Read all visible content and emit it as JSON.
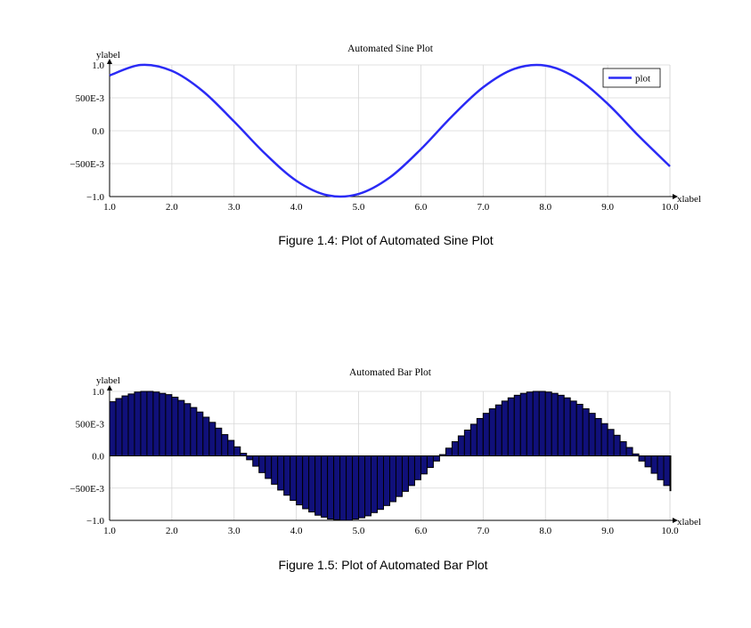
{
  "chart_data": [
    {
      "type": "line",
      "title": "Automated Sine Plot",
      "xlabel": "xlabel",
      "ylabel": "ylabel",
      "xlim": [
        1.0,
        10.0
      ],
      "ylim": [
        -1.0,
        1.0
      ],
      "xticks": [
        "1.0",
        "2.0",
        "3.0",
        "4.0",
        "5.0",
        "6.0",
        "7.0",
        "8.0",
        "9.0",
        "10.0"
      ],
      "yticks": [
        "−1.0",
        "−500E-3",
        "0.0",
        "500E-3",
        "1.0"
      ],
      "grid": true,
      "legend": "top-right",
      "series": [
        {
          "name": "plot",
          "color": "#2a2af5",
          "x": [
            1.0,
            1.5,
            2.0,
            2.5,
            3.0,
            3.5,
            4.0,
            4.5,
            5.0,
            5.5,
            6.0,
            6.5,
            7.0,
            7.5,
            8.0,
            8.5,
            9.0,
            9.5,
            10.0
          ],
          "y": [
            0.84,
            1.0,
            0.91,
            0.6,
            0.14,
            -0.35,
            -0.76,
            -0.98,
            -0.96,
            -0.71,
            -0.28,
            0.22,
            0.66,
            0.94,
            0.99,
            0.8,
            0.41,
            -0.08,
            -0.54
          ]
        }
      ],
      "caption": "Figure 1.4: Plot of Automated Sine Plot"
    },
    {
      "type": "bar",
      "title": "Automated Bar Plot",
      "xlabel": "xlabel",
      "ylabel": "ylabel",
      "xlim": [
        1.0,
        10.0
      ],
      "ylim": [
        -1.0,
        1.0
      ],
      "xticks": [
        "1.0",
        "2.0",
        "3.0",
        "4.0",
        "5.0",
        "6.0",
        "7.0",
        "8.0",
        "9.0",
        "10.0"
      ],
      "yticks": [
        "−1.0",
        "−500E-3",
        "0.0",
        "500E-3",
        "1.0"
      ],
      "grid": true,
      "bar_color": "#10107a",
      "bar_edge_color": "#000000",
      "series": [
        {
          "x": [
            1.0,
            1.1,
            1.2,
            1.3,
            1.4,
            1.5,
            1.6,
            1.7,
            1.8,
            1.9,
            2.0,
            2.1,
            2.2,
            2.3,
            2.4,
            2.5,
            2.6,
            2.7,
            2.8,
            2.9,
            3.0,
            3.1,
            3.2,
            3.3,
            3.4,
            3.5,
            3.6,
            3.7,
            3.8,
            3.9,
            4.0,
            4.1,
            4.2,
            4.3,
            4.4,
            4.5,
            4.6,
            4.7,
            4.8,
            4.9,
            5.0,
            5.1,
            5.2,
            5.3,
            5.4,
            5.5,
            5.6,
            5.7,
            5.8,
            5.9,
            6.0,
            6.1,
            6.2,
            6.3,
            6.4,
            6.5,
            6.6,
            6.7,
            6.8,
            6.9,
            7.0,
            7.1,
            7.2,
            7.3,
            7.4,
            7.5,
            7.6,
            7.7,
            7.8,
            7.9,
            8.0,
            8.1,
            8.2,
            8.3,
            8.4,
            8.5,
            8.6,
            8.7,
            8.8,
            8.9,
            9.0,
            9.1,
            9.2,
            9.3,
            9.4,
            9.5,
            9.6,
            9.7,
            9.8,
            9.9,
            10.0
          ],
          "y": [
            0.84,
            0.89,
            0.93,
            0.96,
            0.99,
            1.0,
            1.0,
            0.99,
            0.97,
            0.95,
            0.91,
            0.86,
            0.81,
            0.75,
            0.68,
            0.6,
            0.52,
            0.43,
            0.33,
            0.24,
            0.14,
            0.04,
            -0.06,
            -0.16,
            -0.26,
            -0.35,
            -0.44,
            -0.53,
            -0.61,
            -0.69,
            -0.76,
            -0.82,
            -0.87,
            -0.92,
            -0.95,
            -0.98,
            -0.99,
            -1.0,
            -1.0,
            -0.98,
            -0.96,
            -0.93,
            -0.88,
            -0.83,
            -0.77,
            -0.71,
            -0.63,
            -0.55,
            -0.46,
            -0.37,
            -0.28,
            -0.18,
            -0.08,
            0.02,
            0.12,
            0.22,
            0.31,
            0.4,
            0.49,
            0.58,
            0.66,
            0.73,
            0.79,
            0.85,
            0.9,
            0.94,
            0.97,
            0.99,
            1.0,
            1.0,
            0.99,
            0.97,
            0.94,
            0.9,
            0.85,
            0.8,
            0.73,
            0.66,
            0.58,
            0.5,
            0.41,
            0.32,
            0.22,
            0.13,
            0.03,
            -0.08,
            -0.17,
            -0.27,
            -0.37,
            -0.46,
            -0.54
          ]
        }
      ],
      "caption": "Figure 1.5: Plot of Automated Bar Plot"
    }
  ]
}
